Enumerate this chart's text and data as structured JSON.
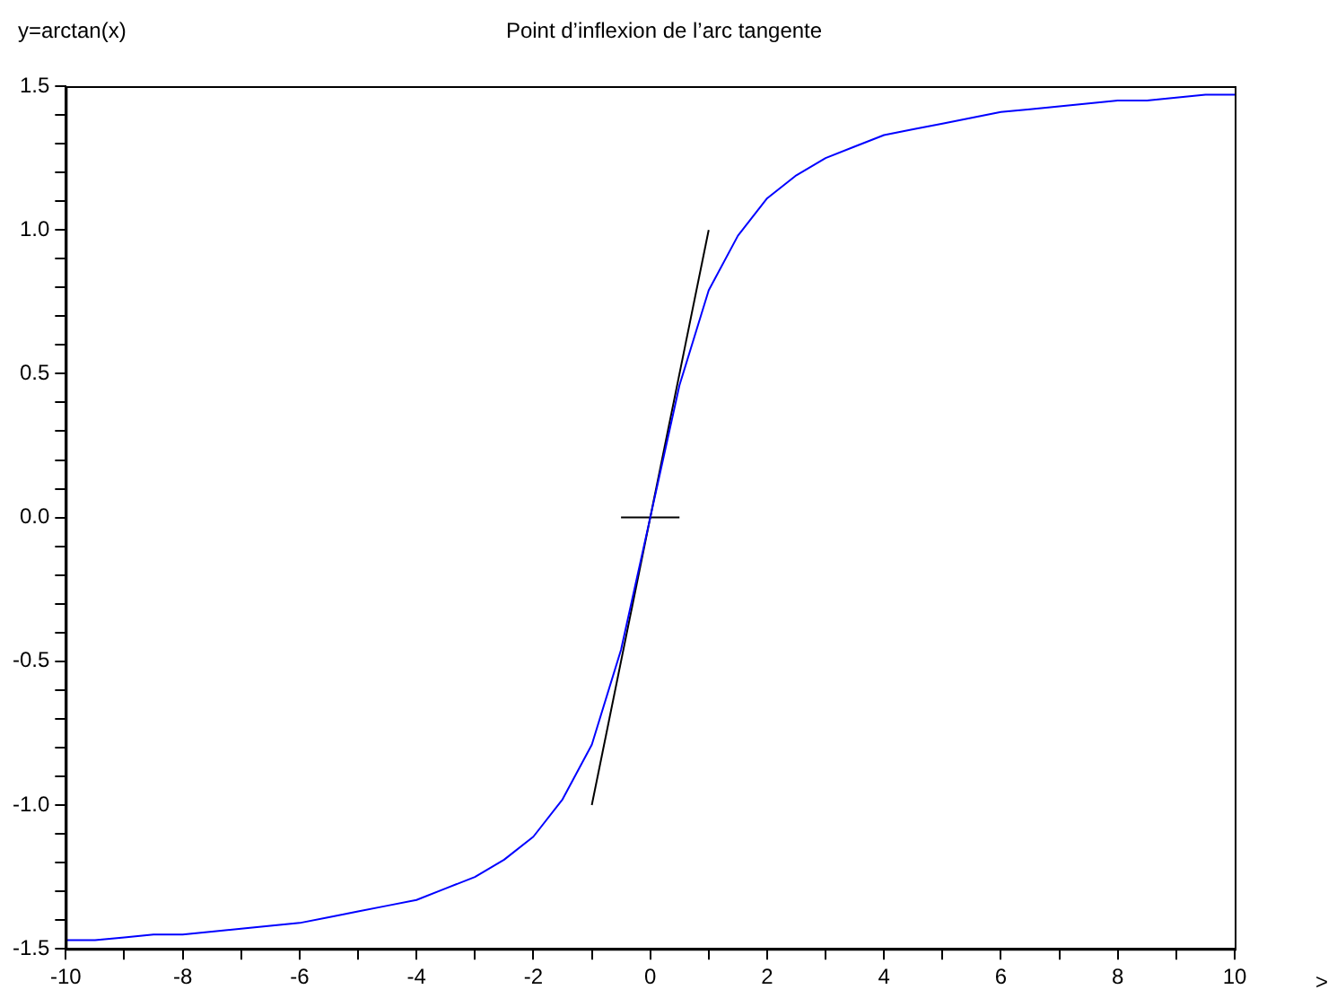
{
  "chart_data": {
    "type": "line",
    "title": "Point d’inflexion de l’arc tangente",
    "ylabel": "y=arctan(x)",
    "xlabel": ">",
    "xlim": [
      -10,
      10
    ],
    "ylim": [
      -1.5,
      1.5
    ],
    "xticks": [
      -10,
      {
        "value": -9,
        "label": null
      },
      -8,
      {
        "value": -7,
        "label": null
      },
      -6,
      {
        "value": -5,
        "label": null
      },
      -4,
      {
        "value": -3,
        "label": null
      },
      -2,
      {
        "value": -1,
        "label": null
      },
      0,
      {
        "value": 1,
        "label": null
      },
      2,
      {
        "value": 3,
        "label": null
      },
      4,
      {
        "value": 5,
        "label": null
      },
      6,
      {
        "value": 7,
        "label": null
      },
      8,
      {
        "value": 9,
        "label": null
      },
      10
    ],
    "yticks": [
      {
        "value": -1.5,
        "label": "-1.5"
      },
      {
        "value": -1.4,
        "label": null
      },
      {
        "value": -1.3,
        "label": null
      },
      {
        "value": -1.2,
        "label": null
      },
      {
        "value": -1.1,
        "label": null
      },
      {
        "value": -1,
        "label": "-1.0"
      },
      {
        "value": -0.9,
        "label": null
      },
      {
        "value": -0.8,
        "label": null
      },
      {
        "value": -0.7,
        "label": null
      },
      {
        "value": -0.6,
        "label": null
      },
      {
        "value": -0.5,
        "label": "-0.5"
      },
      {
        "value": -0.4,
        "label": null
      },
      {
        "value": -0.3,
        "label": null
      },
      {
        "value": -0.2,
        "label": null
      },
      {
        "value": -0.1,
        "label": null
      },
      {
        "value": 0,
        "label": "0.0"
      },
      {
        "value": 0.1,
        "label": null
      },
      {
        "value": 0.2,
        "label": null
      },
      {
        "value": 0.3,
        "label": null
      },
      {
        "value": 0.4,
        "label": null
      },
      {
        "value": 0.5,
        "label": "0.5"
      },
      {
        "value": 0.6,
        "label": null
      },
      {
        "value": 0.7,
        "label": null
      },
      {
        "value": 0.8,
        "label": null
      },
      {
        "value": 0.9,
        "label": null
      },
      {
        "value": 1,
        "label": "1.0"
      },
      {
        "value": 1.1,
        "label": null
      },
      {
        "value": 1.2,
        "label": null
      },
      {
        "value": 1.3,
        "label": null
      },
      {
        "value": 1.4,
        "label": null
      },
      {
        "value": 1.5,
        "label": "1.5"
      }
    ],
    "grid": false,
    "legend": false,
    "marker": "none",
    "line_style": "solid",
    "series": [
      {
        "color": "#0000ff",
        "x": [
          -10,
          -9.5,
          -9,
          -8.5,
          -8,
          -7.5,
          -7,
          -6.5,
          -6,
          -5.5,
          -5,
          -4.5,
          -4,
          -3.5,
          -3,
          -2.5,
          -2,
          -1.5,
          -1,
          -0.5,
          0,
          0.5,
          1,
          1.5,
          2,
          2.5,
          3,
          3.5,
          4,
          4.5,
          5,
          5.5,
          6,
          6.5,
          7,
          7.5,
          8,
          8.5,
          9,
          9.5,
          10
        ],
        "values": [
          -1.47,
          -1.47,
          -1.46,
          -1.45,
          -1.45,
          -1.44,
          -1.43,
          -1.42,
          -1.41,
          -1.39,
          -1.37,
          -1.35,
          -1.33,
          -1.29,
          -1.25,
          -1.19,
          -1.11,
          -0.98,
          -0.79,
          -0.46,
          0,
          0.46,
          0.79,
          0.98,
          1.11,
          1.19,
          1.25,
          1.29,
          1.33,
          1.35,
          1.37,
          1.39,
          1.41,
          1.42,
          1.43,
          1.44,
          1.45,
          1.45,
          1.46,
          1.47,
          1.47
        ]
      },
      {
        "color": "#000000",
        "x": [
          -1,
          1
        ],
        "values": [
          -1,
          1
        ]
      },
      {
        "color": "#000000",
        "x": [
          -0.5,
          0.5
        ],
        "values": [
          0,
          0
        ]
      }
    ]
  }
}
